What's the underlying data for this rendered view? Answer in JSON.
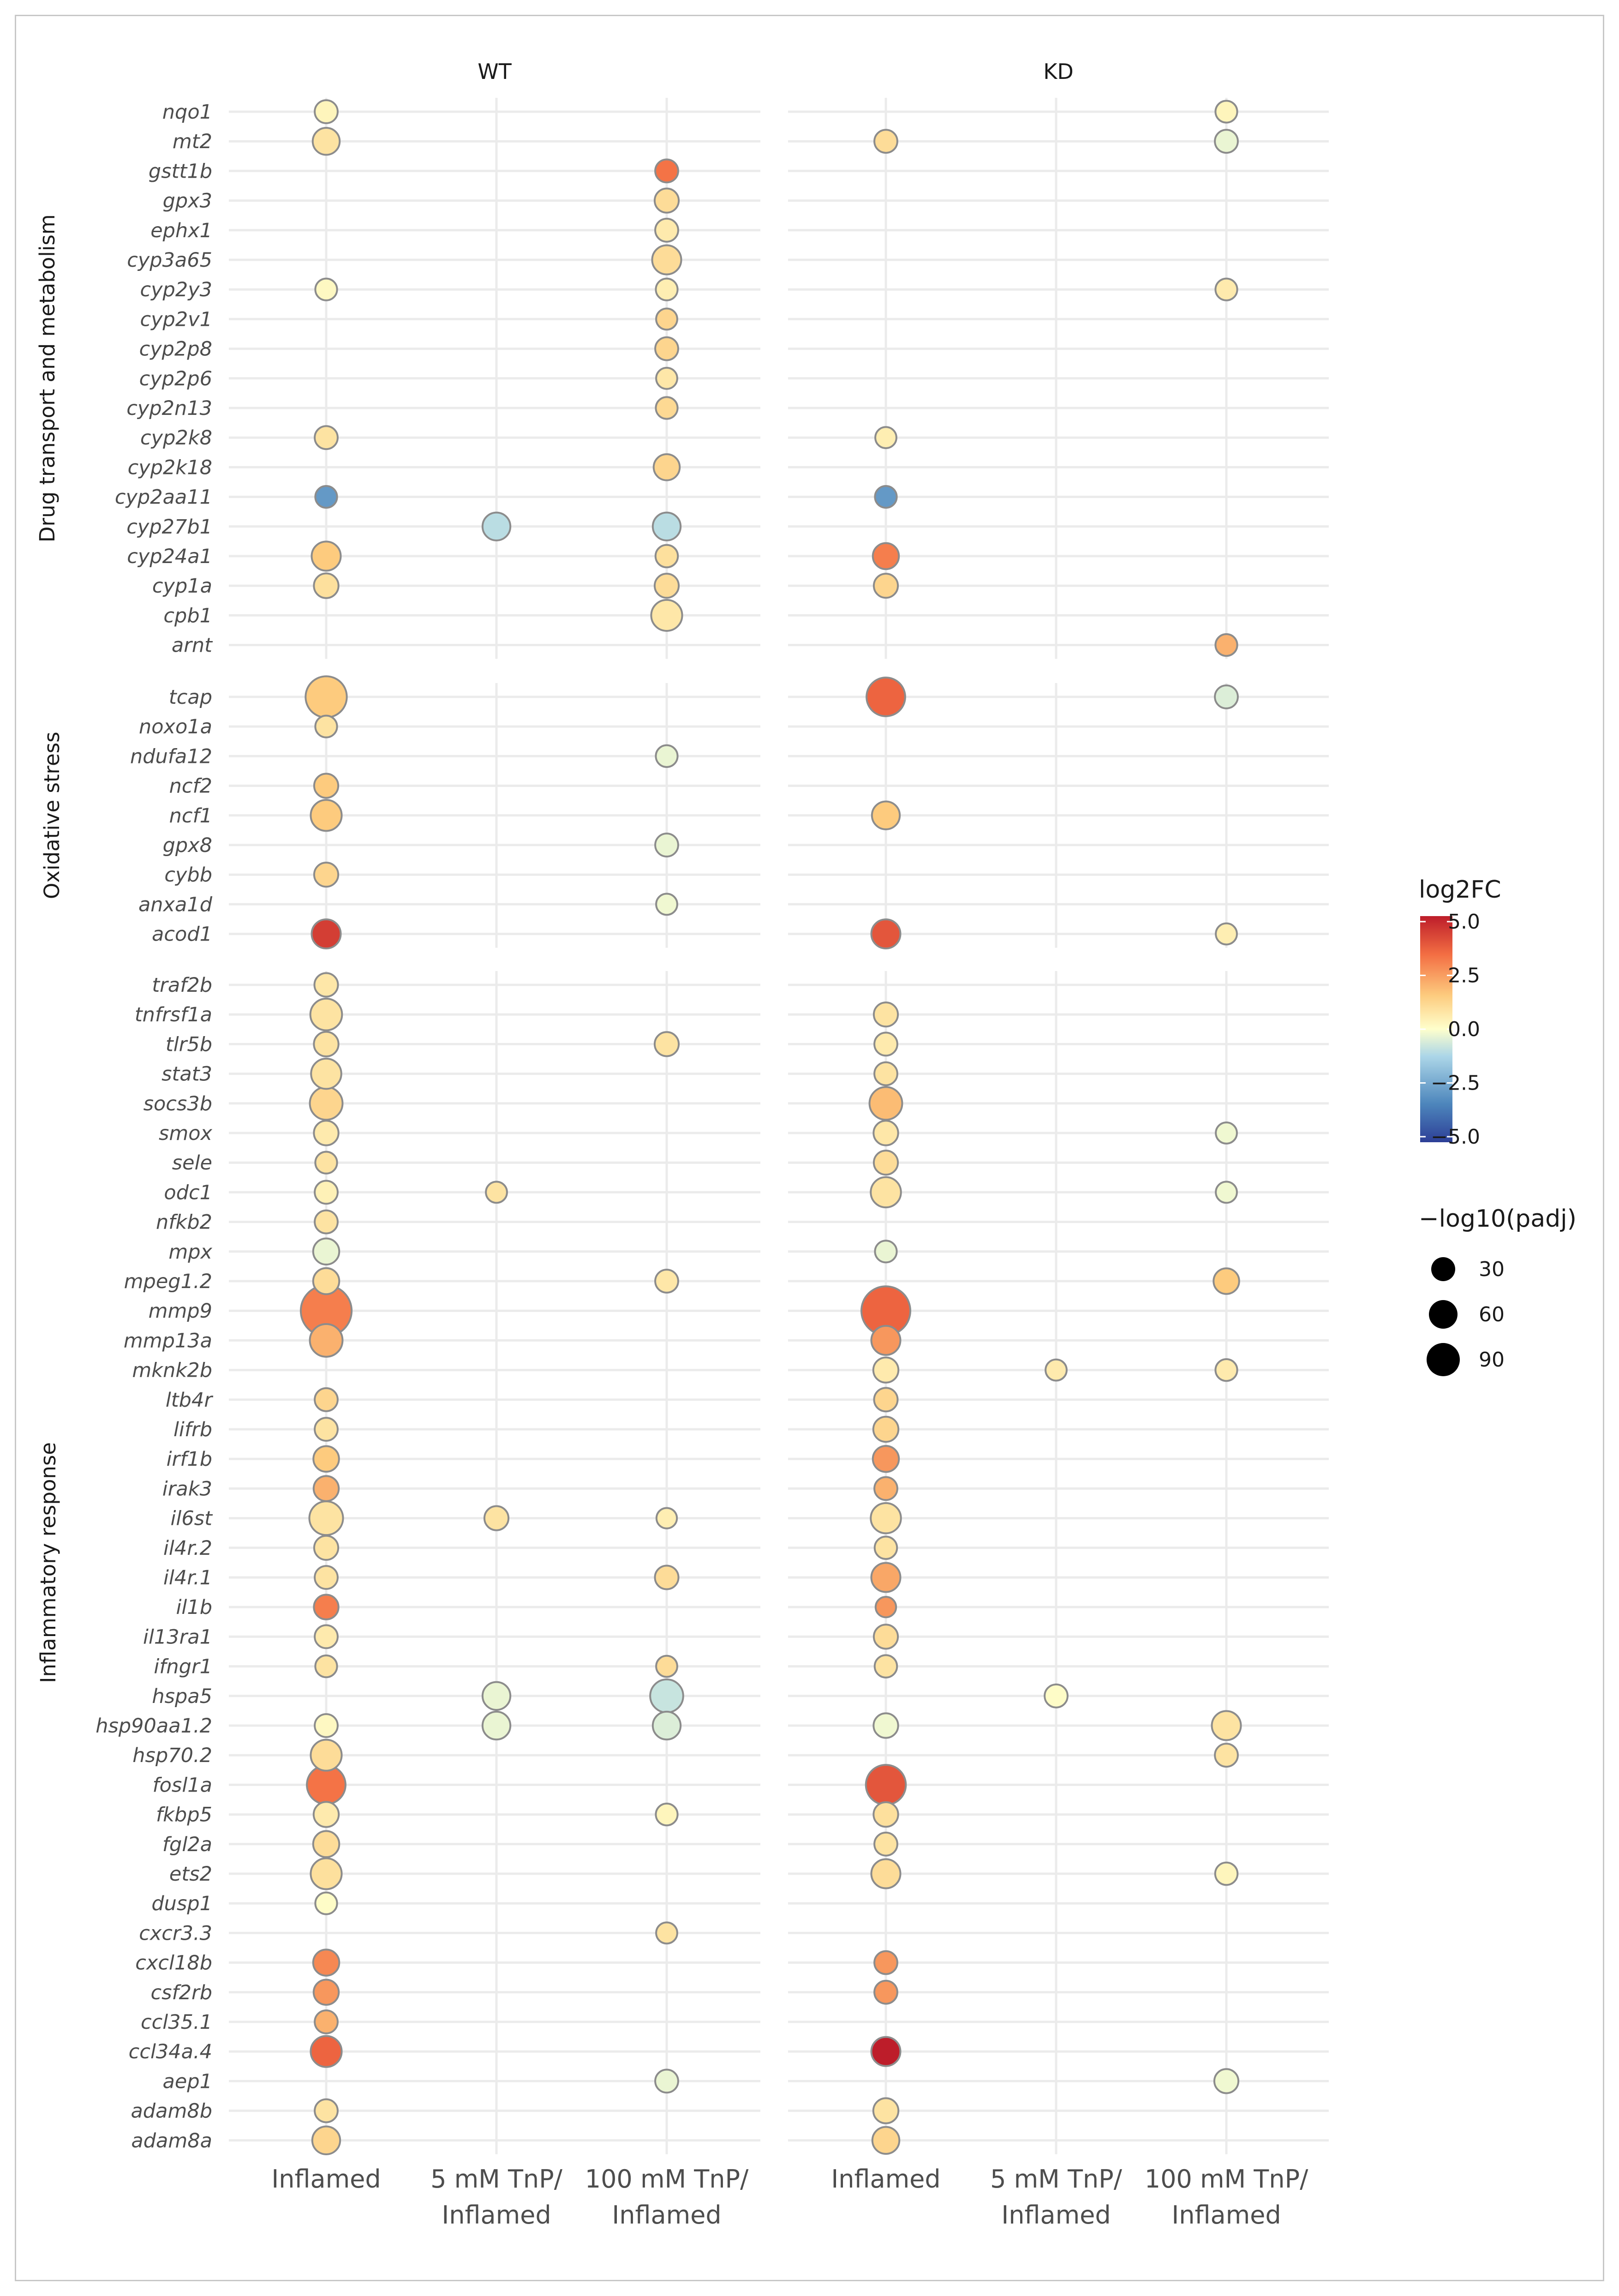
{
  "chart_data": {
    "type": "scatter",
    "facets": [
      "WT",
      "KD"
    ],
    "x_categories": [
      "Inflamed",
      "5 mM TnP/\nInflamed",
      "100 mM TnP/\nInflamed"
    ],
    "groups": [
      {
        "name": "Drug transport and metabolism",
        "genes": [
          "nqo1",
          "mt2",
          "gstt1b",
          "gpx3",
          "ephx1",
          "cyp3a65",
          "cyp2y3",
          "cyp2v1",
          "cyp2p8",
          "cyp2p6",
          "cyp2n13",
          "cyp2k8",
          "cyp2k18",
          "cyp2aa11",
          "cyp27b1",
          "cyp24a1",
          "cyp1a",
          "cpb1",
          "arnt"
        ]
      },
      {
        "name": "Oxidative stress",
        "genes": [
          "tcap",
          "noxo1a",
          "ndufa12",
          "ncf2",
          "ncf1",
          "gpx8",
          "cybb",
          "anxa1d",
          "acod1"
        ]
      },
      {
        "name": "Inflammatory response",
        "genes": [
          "traf2b",
          "tnfrsf1a",
          "tlr5b",
          "stat3",
          "socs3b",
          "smox",
          "sele",
          "odc1",
          "nfkb2",
          "mpx",
          "mpeg1.2",
          "mmp9",
          "mmp13a",
          "mknk2b",
          "ltb4r",
          "lifrb",
          "irf1b",
          "irak3",
          "il6st",
          "il4r.2",
          "il4r.1",
          "il1b",
          "il13ra1",
          "ifngr1",
          "hspa5",
          "hsp90aa1.2",
          "hsp70.2",
          "fosl1a",
          "fkbp5",
          "fgl2a",
          "ets2",
          "dusp1",
          "cxcr3.3",
          "cxcl18b",
          "csf2rb",
          "ccl35.1",
          "ccl34a.4",
          "aep1",
          "adam8b",
          "adam8a"
        ]
      }
    ],
    "points_fields": [
      "facet",
      "condition",
      "gene",
      "log2FC",
      "neg_log10_padj"
    ],
    "points": [
      [
        "WT",
        0,
        "nqo1",
        0.3,
        12
      ],
      [
        "WT",
        0,
        "mt2",
        0.8,
        20
      ],
      [
        "WT",
        0,
        "cyp2y3",
        0.2,
        10
      ],
      [
        "WT",
        0,
        "cyp2k8",
        0.8,
        12
      ],
      [
        "WT",
        0,
        "cyp2aa11",
        -2.8,
        10
      ],
      [
        "WT",
        0,
        "cyp24a1",
        1.5,
        25
      ],
      [
        "WT",
        0,
        "cyp1a",
        0.9,
        15
      ],
      [
        "WT",
        1,
        "cyp27b1",
        -1.0,
        22
      ],
      [
        "WT",
        2,
        "gstt1b",
        3.2,
        12
      ],
      [
        "WT",
        2,
        "gpx3",
        1.0,
        14
      ],
      [
        "WT",
        2,
        "ephx1",
        0.6,
        12
      ],
      [
        "WT",
        2,
        "cyp3a65",
        1.0,
        25
      ],
      [
        "WT",
        2,
        "cyp2y3",
        0.5,
        10
      ],
      [
        "WT",
        2,
        "cyp2v1",
        1.2,
        9
      ],
      [
        "WT",
        2,
        "cyp2p8",
        1.2,
        12
      ],
      [
        "WT",
        2,
        "cyp2p6",
        0.7,
        9
      ],
      [
        "WT",
        2,
        "cyp2n13",
        1.1,
        10
      ],
      [
        "WT",
        2,
        "cyp2k18",
        1.2,
        18
      ],
      [
        "WT",
        2,
        "cyp27b1",
        -1.0,
        22
      ],
      [
        "WT",
        2,
        "cyp24a1",
        0.9,
        11
      ],
      [
        "WT",
        2,
        "cyp1a",
        1.0,
        14
      ],
      [
        "WT",
        2,
        "cpb1",
        0.7,
        30
      ],
      [
        "KD",
        0,
        "mt2",
        1.0,
        12
      ],
      [
        "KD",
        0,
        "cyp2k8",
        0.5,
        9
      ],
      [
        "KD",
        0,
        "cyp2aa11",
        -2.8,
        10
      ],
      [
        "KD",
        0,
        "cyp24a1",
        3.0,
        18
      ],
      [
        "KD",
        0,
        "cyp1a",
        1.2,
        14
      ],
      [
        "KD",
        2,
        "nqo1",
        0.3,
        10
      ],
      [
        "KD",
        2,
        "mt2",
        -0.3,
        12
      ],
      [
        "KD",
        2,
        "cyp2y3",
        0.6,
        10
      ],
      [
        "KD",
        2,
        "arnt",
        2.0,
        10
      ],
      [
        "WT",
        0,
        "tcap",
        1.5,
        65
      ],
      [
        "WT",
        0,
        "noxo1a",
        0.8,
        10
      ],
      [
        "WT",
        0,
        "ncf2",
        1.5,
        14
      ],
      [
        "WT",
        0,
        "ncf1",
        1.5,
        30
      ],
      [
        "WT",
        0,
        "cybb",
        1.2,
        14
      ],
      [
        "WT",
        0,
        "acod1",
        4.3,
        25
      ],
      [
        "WT",
        2,
        "ndufa12",
        -0.3,
        10
      ],
      [
        "WT",
        2,
        "gpx8",
        -0.3,
        12
      ],
      [
        "WT",
        2,
        "anxa1d",
        -0.2,
        9
      ],
      [
        "KD",
        0,
        "tcap",
        3.5,
        55
      ],
      [
        "KD",
        0,
        "ncf1",
        1.5,
        22
      ],
      [
        "KD",
        0,
        "acod1",
        3.8,
        25
      ],
      [
        "KD",
        2,
        "tcap",
        -0.5,
        12
      ],
      [
        "KD",
        2,
        "acod1",
        0.5,
        9
      ],
      [
        "WT",
        0,
        "traf2b",
        0.7,
        13
      ],
      [
        "WT",
        0,
        "tnfrsf1a",
        0.8,
        32
      ],
      [
        "WT",
        0,
        "tlr5b",
        0.8,
        15
      ],
      [
        "WT",
        0,
        "stat3",
        0.8,
        28
      ],
      [
        "WT",
        0,
        "socs3b",
        1.2,
        35
      ],
      [
        "WT",
        0,
        "smox",
        0.6,
        15
      ],
      [
        "WT",
        0,
        "sele",
        0.8,
        10
      ],
      [
        "WT",
        0,
        "odc1",
        0.4,
        12
      ],
      [
        "WT",
        0,
        "nfkb2",
        0.8,
        12
      ],
      [
        "WT",
        0,
        "mpx",
        -0.3,
        18
      ],
      [
        "WT",
        0,
        "mpeg1.2",
        1.0,
        18
      ],
      [
        "WT",
        0,
        "mmp9",
        3.0,
        110
      ],
      [
        "WT",
        0,
        "mmp13a",
        2.0,
        35
      ],
      [
        "WT",
        0,
        "ltb4r",
        1.2,
        12
      ],
      [
        "WT",
        0,
        "lifrb",
        0.8,
        12
      ],
      [
        "WT",
        0,
        "irf1b",
        1.5,
        17
      ],
      [
        "WT",
        0,
        "irak3",
        2.0,
        16
      ],
      [
        "WT",
        0,
        "il6st",
        0.8,
        38
      ],
      [
        "WT",
        0,
        "il4r.2",
        0.8,
        14
      ],
      [
        "WT",
        0,
        "il4r.1",
        0.8,
        12
      ],
      [
        "WT",
        0,
        "il1b",
        3.0,
        15
      ],
      [
        "WT",
        0,
        "il13ra1",
        0.6,
        12
      ],
      [
        "WT",
        0,
        "ifngr1",
        0.8,
        10
      ],
      [
        "WT",
        0,
        "hsp90aa1.2",
        0.2,
        12
      ],
      [
        "WT",
        0,
        "hsp70.2",
        1.0,
        30
      ],
      [
        "WT",
        0,
        "fosl1a",
        3.2,
        55
      ],
      [
        "WT",
        0,
        "fkbp5",
        0.6,
        16
      ],
      [
        "WT",
        0,
        "fgl2a",
        1.0,
        18
      ],
      [
        "WT",
        0,
        "ets2",
        0.9,
        30
      ],
      [
        "WT",
        0,
        "dusp1",
        0.1,
        10
      ],
      [
        "WT",
        0,
        "cxcl18b",
        2.8,
        18
      ],
      [
        "WT",
        0,
        "csf2rb",
        2.5,
        16
      ],
      [
        "WT",
        0,
        "ccl35.1",
        2.0,
        12
      ],
      [
        "WT",
        0,
        "ccl34a.4",
        3.5,
        30
      ],
      [
        "WT",
        0,
        "adam8b",
        0.8,
        12
      ],
      [
        "WT",
        0,
        "adam8a",
        1.2,
        22
      ],
      [
        "WT",
        1,
        "odc1",
        0.8,
        9
      ],
      [
        "WT",
        1,
        "il6st",
        0.8,
        14
      ],
      [
        "WT",
        1,
        "hspa5",
        -0.3,
        22
      ],
      [
        "WT",
        1,
        "hsp90aa1.2",
        -0.3,
        22
      ],
      [
        "WT",
        2,
        "tlr5b",
        0.8,
        14
      ],
      [
        "WT",
        2,
        "mpeg1.2",
        0.7,
        12
      ],
      [
        "WT",
        2,
        "il6st",
        0.5,
        8
      ],
      [
        "WT",
        2,
        "il4r.1",
        1.0,
        13
      ],
      [
        "WT",
        2,
        "ifngr1",
        1.0,
        9
      ],
      [
        "WT",
        2,
        "hspa5",
        -0.8,
        36
      ],
      [
        "WT",
        2,
        "hsp90aa1.2",
        -0.5,
        22
      ],
      [
        "WT",
        2,
        "fkbp5",
        0.3,
        10
      ],
      [
        "WT",
        2,
        "cxcr3.3",
        0.8,
        9
      ],
      [
        "WT",
        2,
        "aep1",
        -0.3,
        12
      ],
      [
        "KD",
        0,
        "tnfrsf1a",
        0.8,
        14
      ],
      [
        "KD",
        0,
        "tlr5b",
        0.6,
        12
      ],
      [
        "KD",
        0,
        "stat3",
        0.8,
        12
      ],
      [
        "KD",
        0,
        "socs3b",
        1.8,
        35
      ],
      [
        "KD",
        0,
        "smox",
        0.7,
        15
      ],
      [
        "KD",
        0,
        "sele",
        1.0,
        14
      ],
      [
        "KD",
        0,
        "odc1",
        0.8,
        28
      ],
      [
        "KD",
        0,
        "mpx",
        -0.3,
        10
      ],
      [
        "KD",
        0,
        "mmp9",
        3.5,
        100
      ],
      [
        "KD",
        0,
        "mmp13a",
        2.5,
        25
      ],
      [
        "KD",
        0,
        "mknk2b",
        0.6,
        16
      ],
      [
        "KD",
        0,
        "ltb4r",
        1.2,
        13
      ],
      [
        "KD",
        0,
        "lifrb",
        1.2,
        16
      ],
      [
        "KD",
        0,
        "irf1b",
        2.5,
        18
      ],
      [
        "KD",
        0,
        "irak3",
        2.0,
        12
      ],
      [
        "KD",
        0,
        "il6st",
        0.8,
        28
      ],
      [
        "KD",
        0,
        "il4r.2",
        0.8,
        11
      ],
      [
        "KD",
        0,
        "il4r.1",
        2.2,
        25
      ],
      [
        "KD",
        0,
        "il1b",
        2.5,
        8
      ],
      [
        "KD",
        0,
        "il13ra1",
        1.0,
        14
      ],
      [
        "KD",
        0,
        "ifngr1",
        0.8,
        11
      ],
      [
        "KD",
        0,
        "hsp90aa1.2",
        -0.2,
        15
      ],
      [
        "KD",
        0,
        "fosl1a",
        3.8,
        60
      ],
      [
        "KD",
        0,
        "fkbp5",
        0.9,
        15
      ],
      [
        "KD",
        0,
        "fgl2a",
        0.8,
        12
      ],
      [
        "KD",
        0,
        "ets2",
        1.0,
        25
      ],
      [
        "KD",
        0,
        "cxcl18b",
        2.5,
        12
      ],
      [
        "KD",
        0,
        "csf2rb",
        2.5,
        12
      ],
      [
        "KD",
        0,
        "ccl34a.4",
        5.0,
        25
      ],
      [
        "KD",
        0,
        "adam8b",
        0.8,
        16
      ],
      [
        "KD",
        0,
        "adam8a",
        1.2,
        20
      ],
      [
        "KD",
        1,
        "mknk2b",
        0.6,
        9
      ],
      [
        "KD",
        1,
        "hspa5",
        0.1,
        12
      ],
      [
        "KD",
        2,
        "smox",
        -0.2,
        9
      ],
      [
        "KD",
        2,
        "odc1",
        -0.2,
        9
      ],
      [
        "KD",
        2,
        "mpeg1.2",
        1.5,
        17
      ],
      [
        "KD",
        2,
        "mknk2b",
        0.6,
        10
      ],
      [
        "KD",
        2,
        "hsp90aa1.2",
        0.8,
        25
      ],
      [
        "KD",
        2,
        "hsp70.2",
        0.8,
        12
      ],
      [
        "KD",
        2,
        "ets2",
        0.3,
        11
      ],
      [
        "KD",
        2,
        "aep1",
        -0.2,
        14
      ]
    ],
    "color_legend": {
      "title": "log2FC",
      "ticks": [
        "5.0",
        "2.5",
        "0.0",
        "−2.5",
        "−5.0"
      ],
      "range": [
        -5,
        5
      ],
      "colors": [
        "#2d3f97",
        "#4d86bc",
        "#acd6e8",
        "#feffcc",
        "#fdcb7e",
        "#f36e43",
        "#bd1d2a"
      ]
    },
    "size_legend": {
      "title": "−log10(padj)",
      "ticks": [
        "30",
        "60",
        "90"
      ],
      "values": [
        30,
        60,
        90
      ]
    }
  }
}
